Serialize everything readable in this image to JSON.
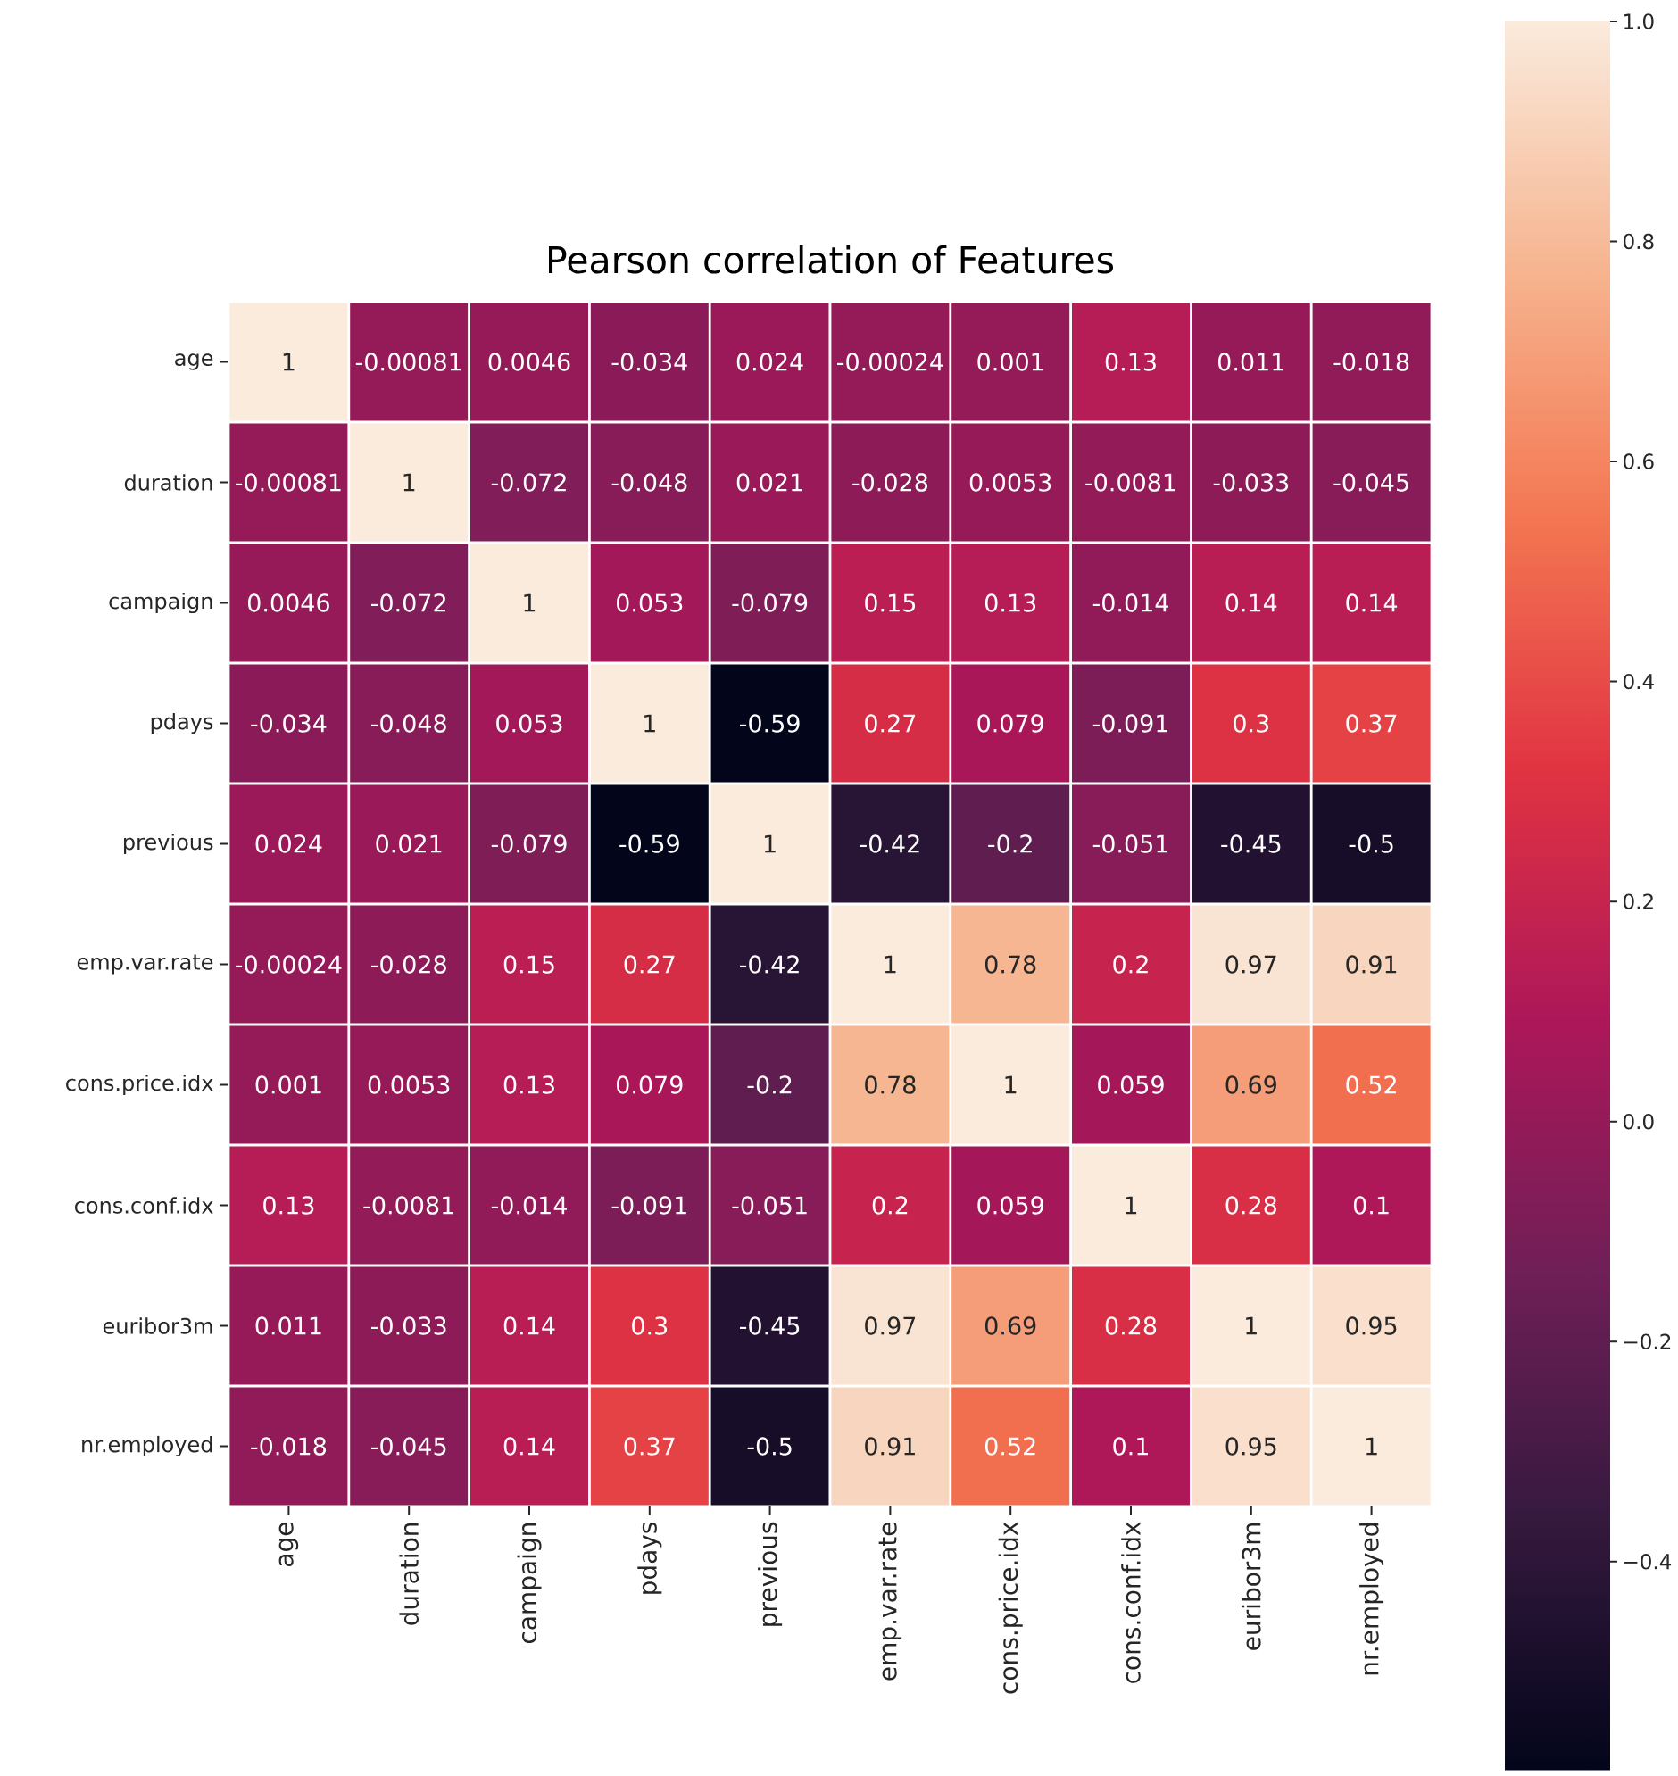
{
  "chart_data": {
    "type": "heatmap",
    "title": "Pearson correlation of Features",
    "categories": [
      "age",
      "duration",
      "campaign",
      "pdays",
      "previous",
      "emp.var.rate",
      "cons.price.idx",
      "cons.conf.idx",
      "euribor3m",
      "nr.employed"
    ],
    "y_categories": [
      "age",
      "duration",
      "campaign",
      "pdays",
      "previous",
      "emp.var.rate",
      "cons.price.idx",
      "cons.conf.idx",
      "euribor3m",
      "nr.employed"
    ],
    "cells": [
      [
        1,
        -0.00081,
        0.0046,
        -0.034,
        0.024,
        -0.00024,
        0.001,
        0.13,
        0.011,
        -0.018
      ],
      [
        -0.00081,
        1,
        -0.072,
        -0.048,
        0.021,
        -0.028,
        0.0053,
        -0.0081,
        -0.033,
        -0.045
      ],
      [
        0.0046,
        -0.072,
        1,
        0.053,
        -0.079,
        0.15,
        0.13,
        -0.014,
        0.14,
        0.14
      ],
      [
        -0.034,
        -0.048,
        0.053,
        1,
        -0.59,
        0.27,
        0.079,
        -0.091,
        0.3,
        0.37
      ],
      [
        0.024,
        0.021,
        -0.079,
        -0.59,
        1,
        -0.42,
        -0.2,
        -0.051,
        -0.45,
        -0.5
      ],
      [
        -0.00024,
        -0.028,
        0.15,
        0.27,
        -0.42,
        1,
        0.78,
        0.2,
        0.97,
        0.91
      ],
      [
        0.001,
        0.0053,
        0.13,
        0.079,
        -0.2,
        0.78,
        1,
        0.059,
        0.69,
        0.52
      ],
      [
        0.13,
        -0.0081,
        -0.014,
        -0.091,
        -0.051,
        0.2,
        0.059,
        1,
        0.28,
        0.1
      ],
      [
        0.011,
        -0.033,
        0.14,
        0.3,
        -0.45,
        0.97,
        0.69,
        0.28,
        1,
        0.95
      ],
      [
        -0.018,
        -0.045,
        0.14,
        0.37,
        -0.5,
        0.91,
        0.52,
        0.1,
        0.95,
        1
      ]
    ],
    "data_labels": true,
    "clim": [
      -0.59,
      1
    ],
    "cticks": [
      {
        "value": 1,
        "label": "1.0"
      },
      0.8,
      0.6,
      0.4,
      0.2,
      {
        "value": 0,
        "label": "0.0"
      },
      {
        "value": -0.2,
        "label": "−0.2"
      },
      {
        "value": -0.4,
        "label": "−0.4"
      }
    ]
  }
}
